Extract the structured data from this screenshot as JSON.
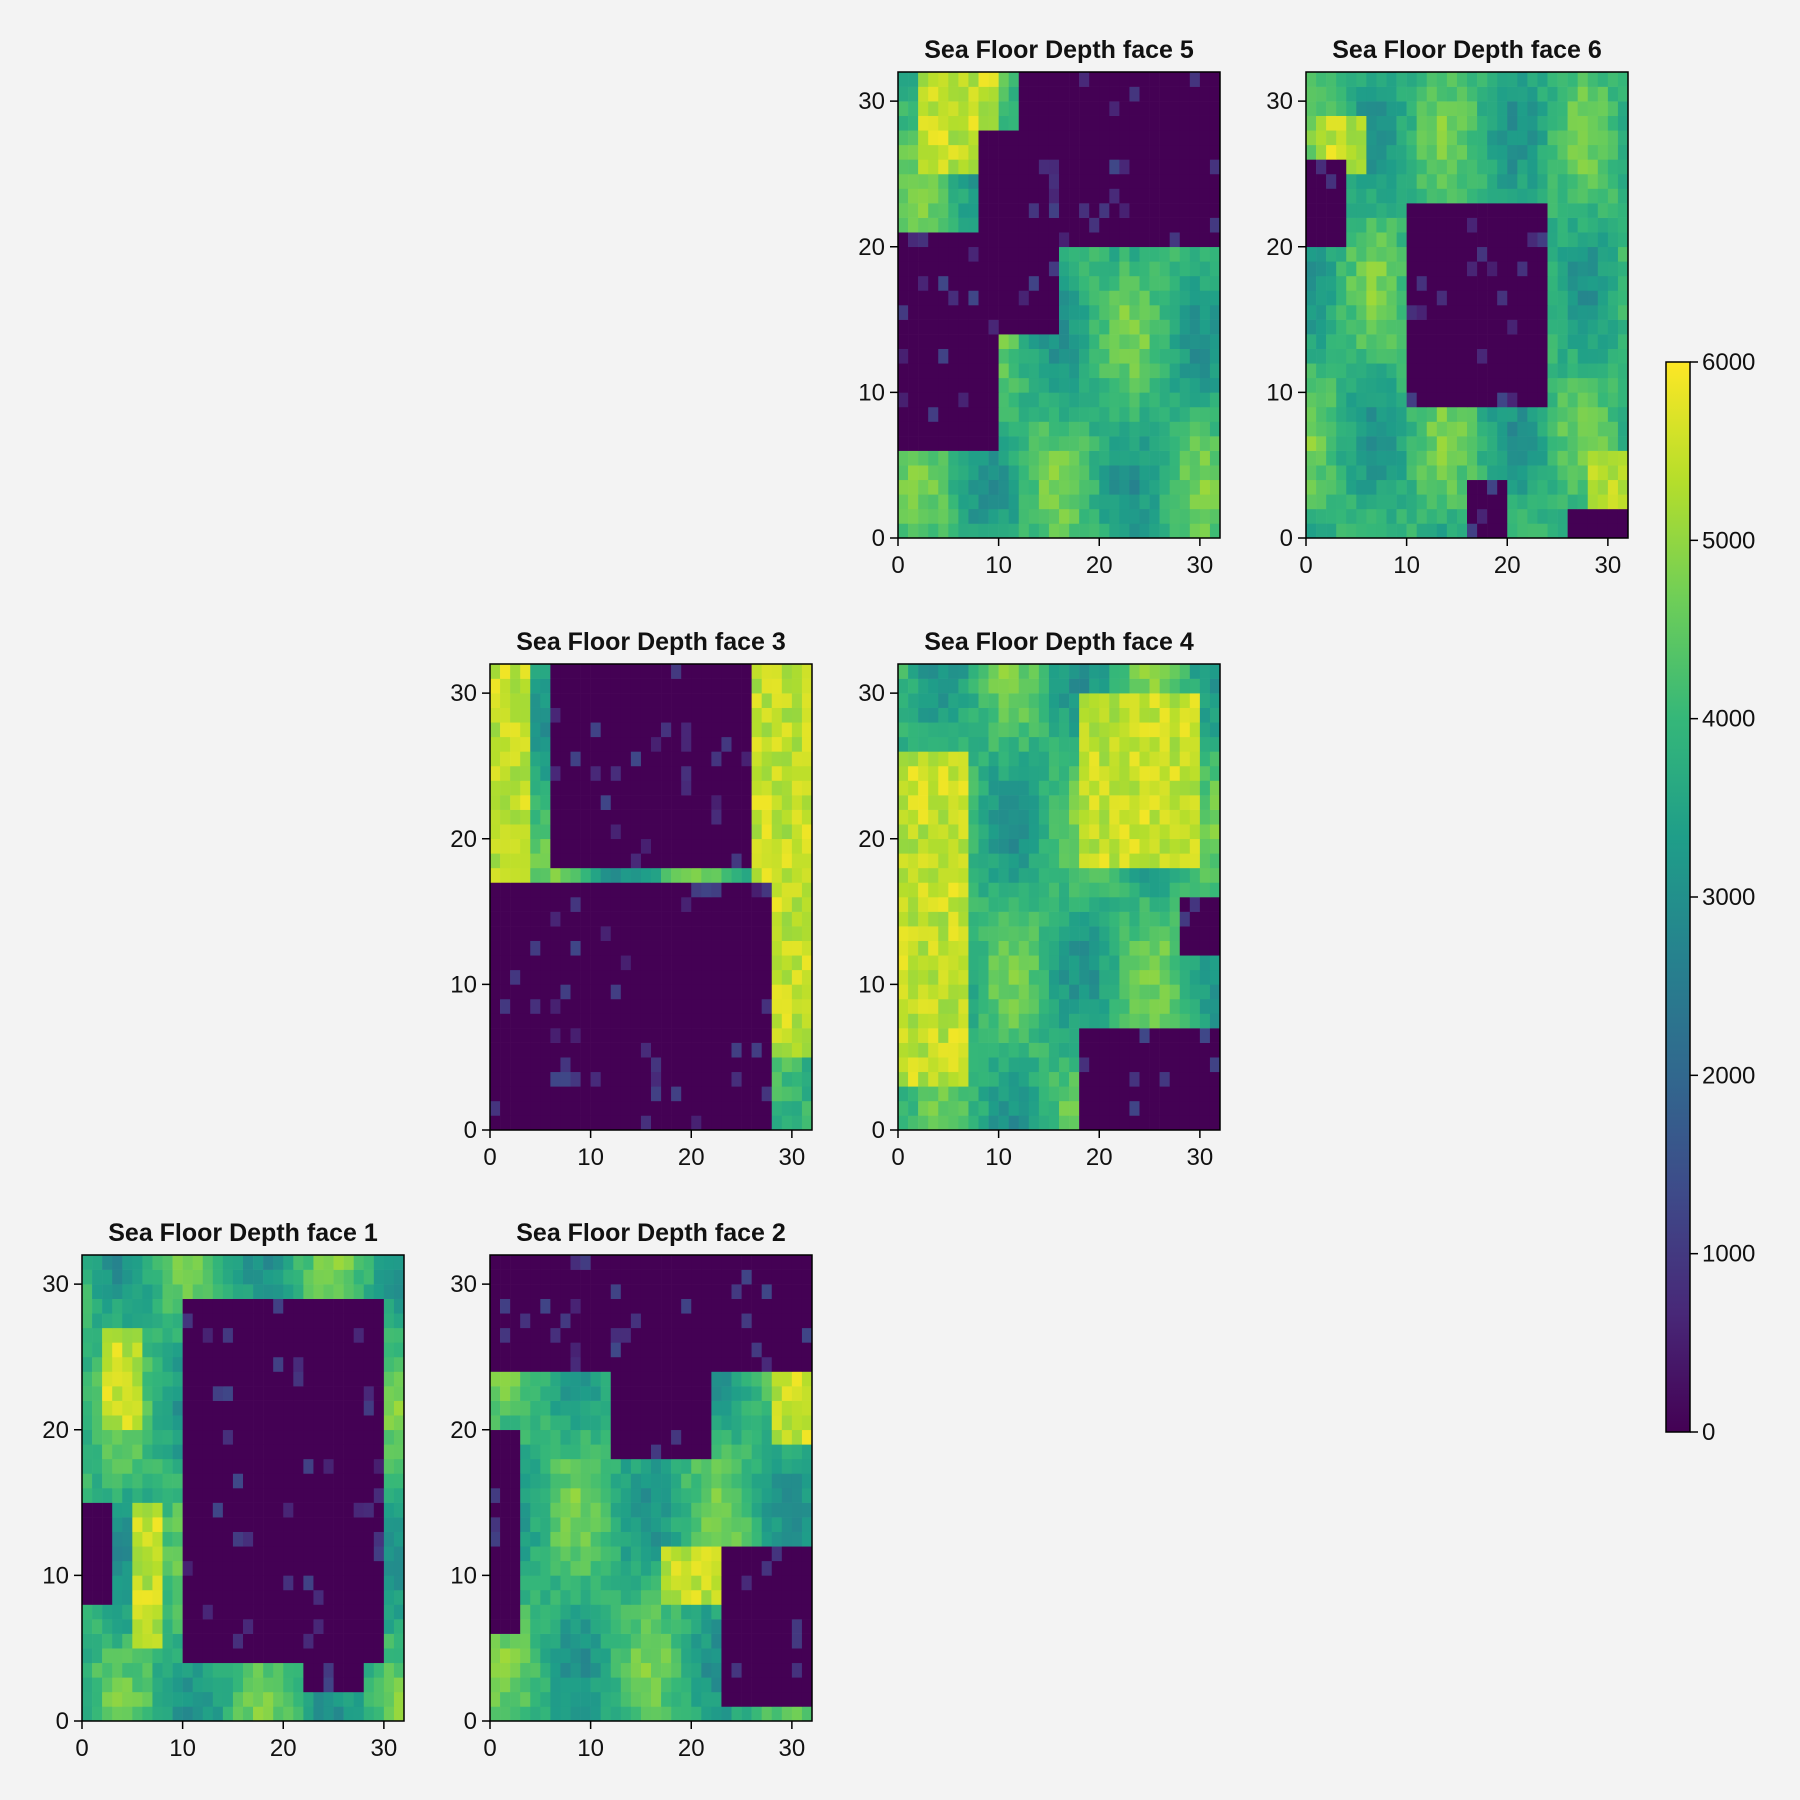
{
  "colorbar": {
    "colors": [
      "#440154",
      "#482878",
      "#3e4a89",
      "#31688e",
      "#26828e",
      "#1f9e89",
      "#35b779",
      "#6ece58",
      "#b5de2b",
      "#fde725"
    ],
    "range": [
      0,
      6000
    ],
    "tick_labels": [
      "0",
      "1000",
      "2000",
      "3000",
      "4000",
      "5000",
      "6000"
    ]
  },
  "axis_tick_labels": [
    "0",
    "10",
    "20",
    "30"
  ],
  "chart_data": [
    {
      "type": "heatmap",
      "title": "Sea Floor Depth face 1",
      "xlim": [
        0,
        32
      ],
      "ylim": [
        0,
        32
      ],
      "grid": false,
      "zlim": [
        0,
        6000
      ],
      "colormap": "viridis",
      "land_regions_cells": [
        {
          "x": [
            10,
            30
          ],
          "y": [
            4,
            29
          ]
        },
        {
          "x": [
            22,
            28
          ],
          "y": [
            2,
            4
          ]
        },
        {
          "x": [
            0,
            3
          ],
          "y": [
            8,
            15
          ]
        }
      ],
      "shallow_bands_cells": [
        {
          "x": [
            2,
            6
          ],
          "y": [
            20,
            27
          ]
        },
        {
          "x": [
            5,
            8
          ],
          "y": [
            5,
            15
          ]
        },
        {
          "x": [
            15,
            19
          ],
          "y": [
            6,
            14
          ]
        }
      ]
    },
    {
      "type": "heatmap",
      "title": "Sea Floor Depth face 2",
      "xlim": [
        0,
        32
      ],
      "ylim": [
        0,
        32
      ],
      "grid": false,
      "zlim": [
        0,
        6000
      ],
      "colormap": "viridis",
      "land_regions_cells": [
        {
          "x": [
            0,
            32
          ],
          "y": [
            24,
            32
          ]
        },
        {
          "x": [
            12,
            22
          ],
          "y": [
            18,
            26
          ]
        },
        {
          "x": [
            23,
            32
          ],
          "y": [
            1,
            12
          ]
        },
        {
          "x": [
            0,
            3
          ],
          "y": [
            6,
            20
          ]
        }
      ],
      "shallow_bands_cells": [
        {
          "x": [
            28,
            32
          ],
          "y": [
            19,
            25
          ]
        },
        {
          "x": [
            17,
            24
          ],
          "y": [
            8,
            12
          ]
        }
      ]
    },
    {
      "type": "heatmap",
      "title": "Sea Floor Depth face 3",
      "xlim": [
        0,
        32
      ],
      "ylim": [
        0,
        32
      ],
      "grid": false,
      "zlim": [
        0,
        6000
      ],
      "colormap": "viridis",
      "land_regions_cells": [
        {
          "x": [
            0,
            28
          ],
          "y": [
            0,
            17
          ]
        },
        {
          "x": [
            6,
            26
          ],
          "y": [
            18,
            32
          ]
        }
      ],
      "shallow_bands_cells": [
        {
          "x": [
            26,
            32
          ],
          "y": [
            5,
            32
          ]
        },
        {
          "x": [
            0,
            4
          ],
          "y": [
            17,
            32
          ]
        }
      ]
    },
    {
      "type": "heatmap",
      "title": "Sea Floor Depth face 4",
      "xlim": [
        0,
        32
      ],
      "ylim": [
        0,
        32
      ],
      "grid": false,
      "zlim": [
        0,
        6000
      ],
      "colormap": "viridis",
      "land_regions_cells": [
        {
          "x": [
            18,
            32
          ],
          "y": [
            0,
            7
          ]
        },
        {
          "x": [
            28,
            32
          ],
          "y": [
            12,
            16
          ]
        }
      ],
      "shallow_bands_cells": [
        {
          "x": [
            0,
            7
          ],
          "y": [
            3,
            26
          ]
        },
        {
          "x": [
            18,
            30
          ],
          "y": [
            18,
            30
          ]
        }
      ]
    },
    {
      "type": "heatmap",
      "title": "Sea Floor Depth face 5",
      "xlim": [
        0,
        32
      ],
      "ylim": [
        0,
        32
      ],
      "grid": false,
      "zlim": [
        0,
        6000
      ],
      "colormap": "viridis",
      "land_regions_cells": [
        {
          "x": [
            12,
            32
          ],
          "y": [
            20,
            32
          ]
        },
        {
          "x": [
            0,
            10
          ],
          "y": [
            6,
            21
          ]
        },
        {
          "x": [
            8,
            16
          ],
          "y": [
            14,
            28
          ]
        }
      ],
      "shallow_bands_cells": [
        {
          "x": [
            2,
            10
          ],
          "y": [
            25,
            32
          ]
        }
      ]
    },
    {
      "type": "heatmap",
      "title": "Sea Floor Depth face 6",
      "xlim": [
        0,
        32
      ],
      "ylim": [
        0,
        32
      ],
      "grid": false,
      "zlim": [
        0,
        6000
      ],
      "colormap": "viridis",
      "land_regions_cells": [
        {
          "x": [
            10,
            24
          ],
          "y": [
            9,
            23
          ]
        },
        {
          "x": [
            0,
            4
          ],
          "y": [
            20,
            26
          ]
        },
        {
          "x": [
            16,
            20
          ],
          "y": [
            0,
            4
          ]
        },
        {
          "x": [
            26,
            32
          ],
          "y": [
            0,
            2
          ]
        }
      ],
      "shallow_bands_cells": [
        {
          "x": [
            1,
            6
          ],
          "y": [
            25,
            29
          ]
        },
        {
          "x": [
            28,
            32
          ],
          "y": [
            1,
            6
          ]
        }
      ]
    }
  ]
}
